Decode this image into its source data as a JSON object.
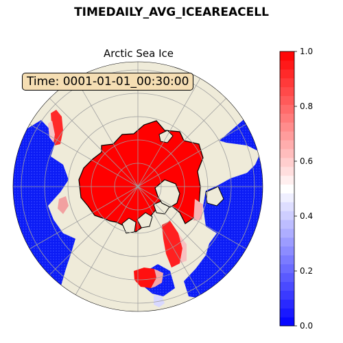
{
  "figure": {
    "title": "TIMEDAILY_AVG_ICEAREACELL"
  },
  "map": {
    "title": "Arctic Sea Ice",
    "projection": "north-polar-stereographic",
    "time_label": "Time: 0001-01-01_00:30:00",
    "land_color": "#efebd9",
    "ice_high_color": "#ff0000",
    "ice_low_color": "#0a1cff",
    "gridlines": true
  },
  "colorbar": {
    "min": 0.0,
    "max": 1.0,
    "ticks": [
      {
        "value": 0.0,
        "label": "0.0"
      },
      {
        "value": 0.2,
        "label": "0.2"
      },
      {
        "value": 0.4,
        "label": "0.4"
      },
      {
        "value": 0.6,
        "label": "0.6"
      },
      {
        "value": 0.8,
        "label": "0.8"
      },
      {
        "value": 1.0,
        "label": "1.0"
      }
    ],
    "colormap": "bwr",
    "levels": 31
  }
}
